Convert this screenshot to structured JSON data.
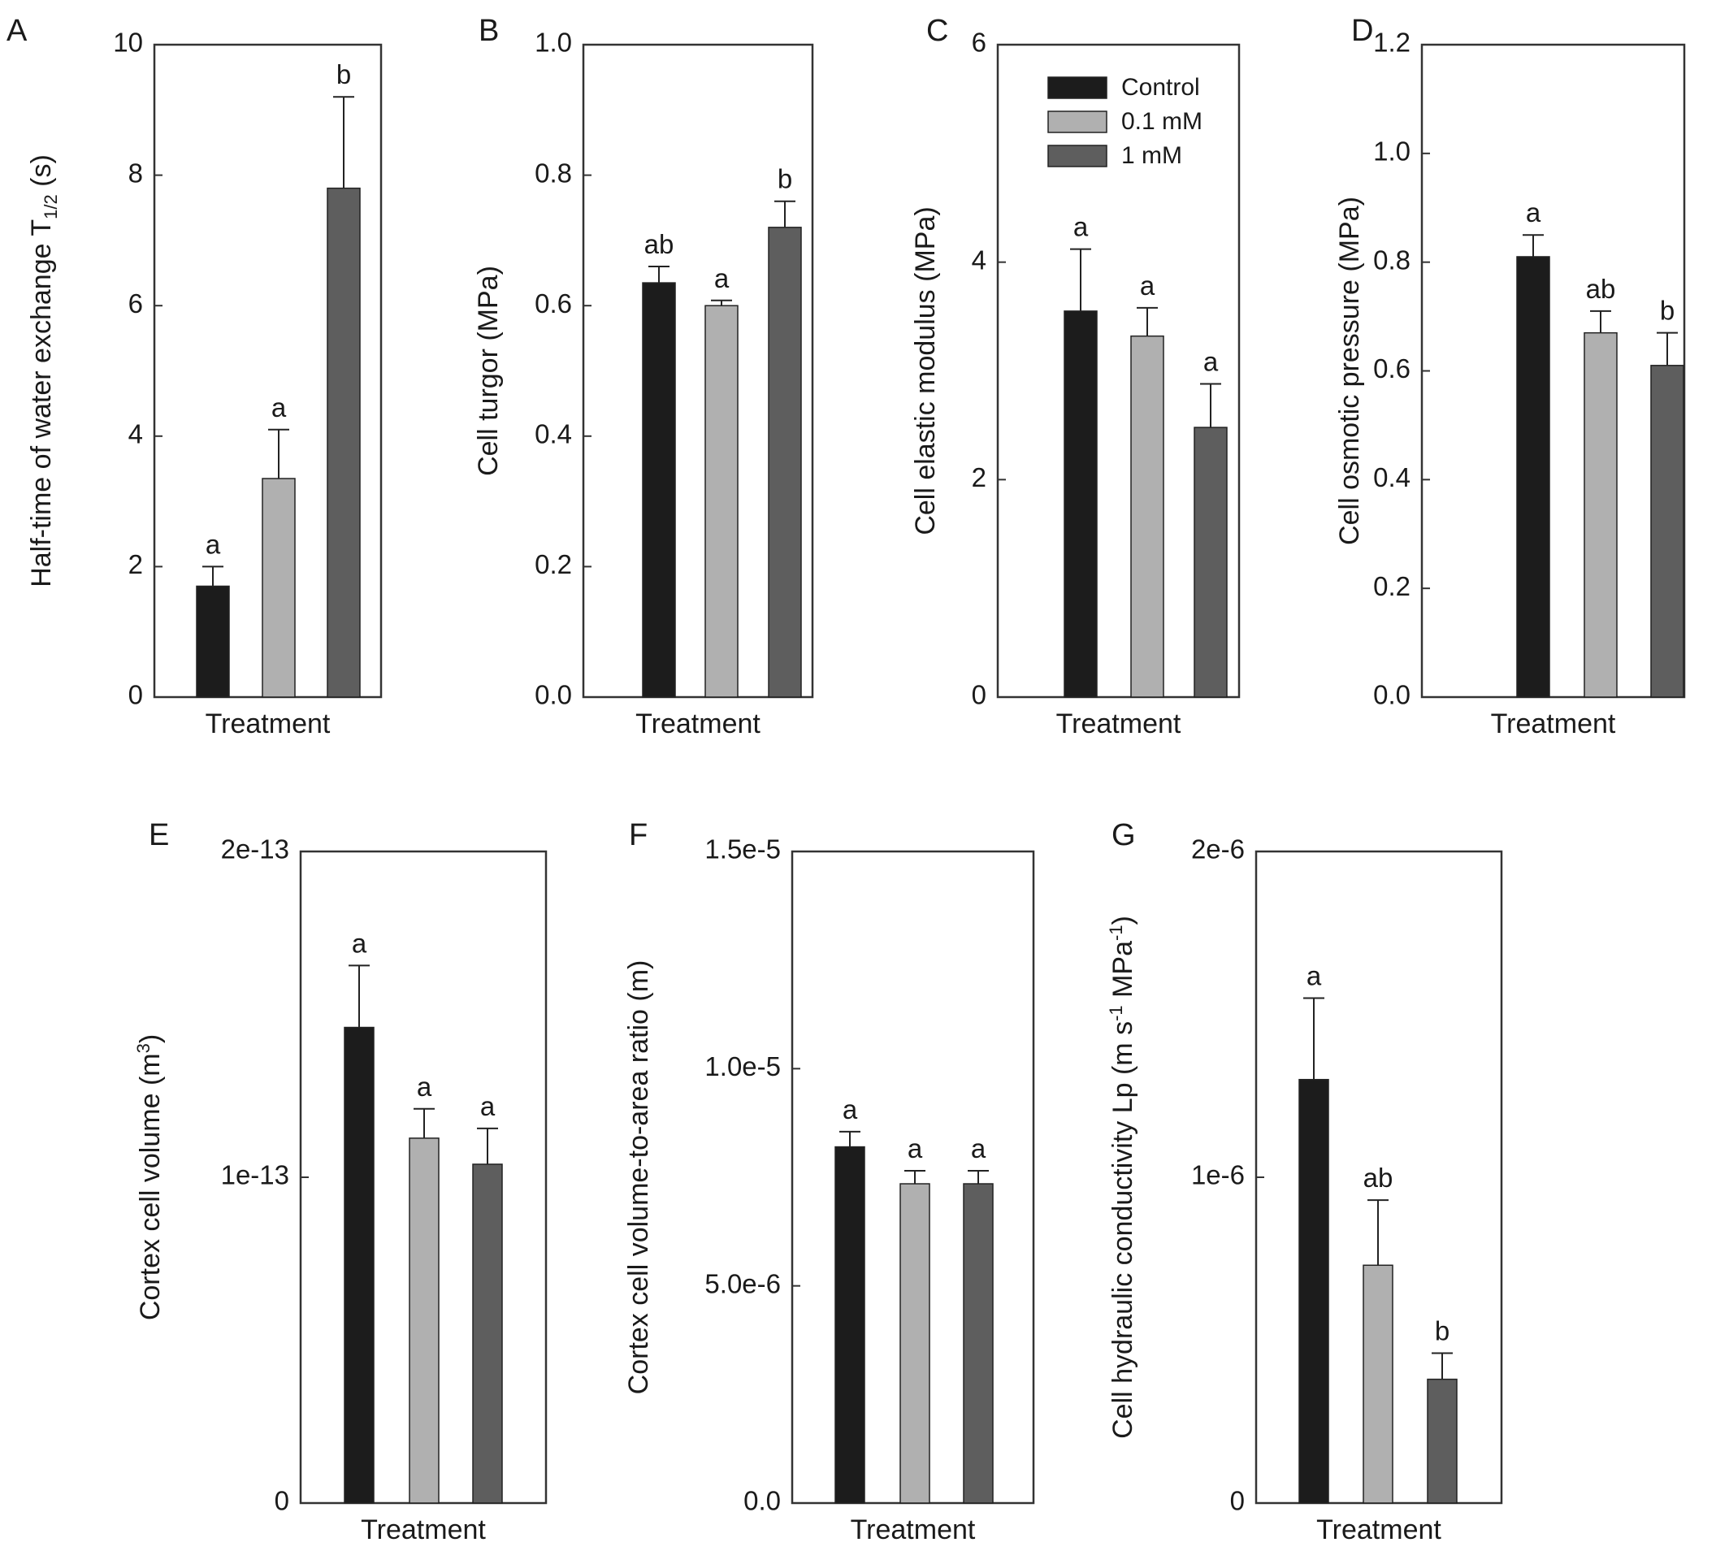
{
  "colors": {
    "control": "#1c1c1c",
    "mM_0_1": "#b0b0b0",
    "mM_1": "#5e5e5e",
    "frame": "#333333"
  },
  "legend": {
    "items": [
      {
        "label": "Control",
        "color": "#1c1c1c"
      },
      {
        "label": "0.1 mM",
        "color": "#b0b0b0"
      },
      {
        "label": "1 mM",
        "color": "#5e5e5e"
      }
    ]
  },
  "chart_data": [
    {
      "panel": "A",
      "type": "bar",
      "xlabel": "Treatment",
      "ylabel": "Half-time of water exchange T",
      "ylabel_sub": "1/2",
      "ylabel_suffix": " (s)",
      "ylim": [
        0,
        10
      ],
      "ticks": [
        "0",
        "2",
        "4",
        "6",
        "8",
        "10"
      ],
      "categories": [
        "Control",
        "0.1 mM",
        "1 mM"
      ],
      "values": [
        1.7,
        3.35,
        7.8
      ],
      "errors": [
        0.3,
        0.75,
        1.4
      ],
      "significance": [
        "a",
        "a",
        "b"
      ]
    },
    {
      "panel": "B",
      "type": "bar",
      "xlabel": "Treatment",
      "ylabel": "Cell turgor (MPa)",
      "ylim": [
        0,
        1.0
      ],
      "ticks": [
        "0.0",
        "0.2",
        "0.4",
        "0.6",
        "0.8",
        "1.0"
      ],
      "categories": [
        "Control",
        "0.1 mM",
        "1 mM"
      ],
      "values": [
        0.635,
        0.6,
        0.72
      ],
      "errors": [
        0.025,
        0.008,
        0.04
      ],
      "significance": [
        "ab",
        "a",
        "b"
      ]
    },
    {
      "panel": "C",
      "type": "bar",
      "xlabel": "Treatment",
      "ylabel": "Cell elastic modulus (MPa)",
      "ylim": [
        0,
        6
      ],
      "ticks": [
        "0",
        "2",
        "4",
        "6"
      ],
      "categories": [
        "Control",
        "0.1 mM",
        "1 mM"
      ],
      "values": [
        3.55,
        3.32,
        2.48
      ],
      "errors": [
        0.57,
        0.26,
        0.4
      ],
      "significance": [
        "a",
        "a",
        "a"
      ],
      "has_legend": true
    },
    {
      "panel": "D",
      "type": "bar",
      "xlabel": "Treatment",
      "ylabel": "Cell osmotic pressure (MPa)",
      "ylim": [
        0,
        1.2
      ],
      "ticks": [
        "0.0",
        "0.2",
        "0.4",
        "0.6",
        "0.8",
        "1.0",
        "1.2"
      ],
      "categories": [
        "Control",
        "0.1 mM",
        "1 mM"
      ],
      "values": [
        0.81,
        0.67,
        0.61
      ],
      "errors": [
        0.04,
        0.04,
        0.06
      ],
      "significance": [
        "a",
        "ab",
        "b"
      ]
    },
    {
      "panel": "E",
      "type": "bar",
      "xlabel": "Treatment",
      "ylabel": "Cortex cell volume (m",
      "ylabel_sup": "3",
      "ylabel_suffix": ")",
      "ylim": [
        0,
        2e-13
      ],
      "ticks": [
        "0",
        "1e-13",
        "2e-13"
      ],
      "categories": [
        "Control",
        "0.1 mM",
        "1 mM"
      ],
      "values": [
        1.46e-13,
        1.12e-13,
        1.04e-13
      ],
      "errors": [
        1.9e-14,
        9e-15,
        1.1e-14
      ],
      "significance": [
        "a",
        "a",
        "a"
      ]
    },
    {
      "panel": "F",
      "type": "bar",
      "xlabel": "Treatment",
      "ylabel": "Cortex cell volume-to-area ratio (m)",
      "ylim": [
        0,
        1.5e-05
      ],
      "ticks": [
        "0.0",
        "5.0e-6",
        "1.0e-5",
        "1.5e-5"
      ],
      "categories": [
        "Control",
        "0.1 mM",
        "1 mM"
      ],
      "values": [
        8.2e-06,
        7.35e-06,
        7.35e-06
      ],
      "errors": [
        3.5e-07,
        3e-07,
        3e-07
      ],
      "significance": [
        "a",
        "a",
        "a"
      ]
    },
    {
      "panel": "G",
      "type": "bar",
      "xlabel": "Treatment",
      "ylabel": "Cell hydraulic conductivity Lp (m s",
      "ylabel_sup": "-1",
      "ylabel_mid": " MPa",
      "ylabel_sup2": "-1",
      "ylabel_suffix": ")",
      "ylim": [
        0,
        2e-06
      ],
      "ticks": [
        "0",
        "1e-6",
        "2e-6"
      ],
      "categories": [
        "Control",
        "0.1 mM",
        "1 mM"
      ],
      "values": [
        1.3e-06,
        7.3e-07,
        3.8e-07
      ],
      "errors": [
        2.5e-07,
        2e-07,
        8e-08
      ],
      "significance": [
        "a",
        "ab",
        "b"
      ]
    }
  ]
}
